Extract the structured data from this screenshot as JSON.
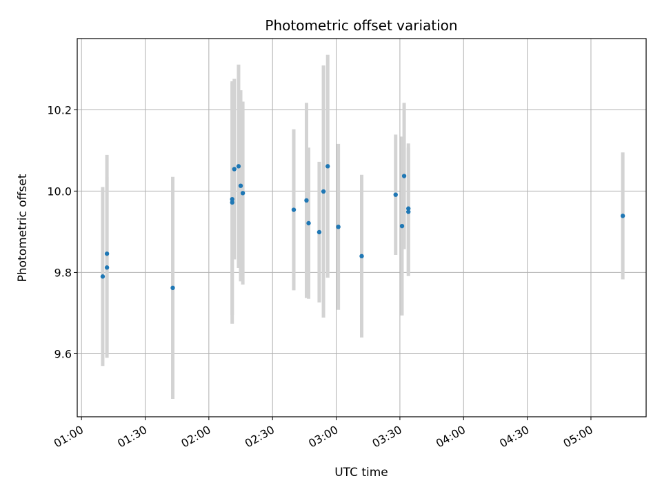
{
  "chart_data": {
    "type": "scatter",
    "title": "Photometric offset variation",
    "xlabel": "UTC time",
    "ylabel": "Photometric offset",
    "x_tick_labels": [
      "01:00",
      "01:30",
      "02:00",
      "02:30",
      "03:00",
      "03:30",
      "04:00",
      "04:30",
      "05:00"
    ],
    "x_tick_values_min": [
      60,
      90,
      120,
      150,
      180,
      210,
      240,
      270,
      300
    ],
    "xlim_min": [
      58,
      326
    ],
    "y_ticks": [
      9.6,
      9.8,
      10.0,
      10.2
    ],
    "y_tick_labels": [
      "9.6",
      "9.8",
      "10.0",
      "10.2"
    ],
    "ylim": [
      9.445,
      10.375
    ],
    "grid": true,
    "point_color": "#1f77b4",
    "errorbar_color": "#d3d3d3",
    "points": [
      {
        "x": "01:10",
        "y": 9.79,
        "err": 0.22
      },
      {
        "x": "01:12",
        "y": 9.812,
        "err": 0.222
      },
      {
        "x": "01:12",
        "y": 9.846,
        "err": 0.243
      },
      {
        "x": "01:43",
        "y": 9.762,
        "err": 0.273
      },
      {
        "x": "02:11",
        "y": 9.972,
        "err": 0.298
      },
      {
        "x": "02:11",
        "y": 9.98,
        "err": 0.285
      },
      {
        "x": "02:12",
        "y": 10.054,
        "err": 0.222
      },
      {
        "x": "02:14",
        "y": 10.061,
        "err": 0.25
      },
      {
        "x": "02:15",
        "y": 10.013,
        "err": 0.235
      },
      {
        "x": "02:16",
        "y": 9.995,
        "err": 0.225
      },
      {
        "x": "02:40",
        "y": 9.954,
        "err": 0.198
      },
      {
        "x": "02:46",
        "y": 9.977,
        "err": 0.24
      },
      {
        "x": "02:47",
        "y": 9.921,
        "err": 0.186
      },
      {
        "x": "02:52",
        "y": 9.899,
        "err": 0.173
      },
      {
        "x": "02:54",
        "y": 9.999,
        "err": 0.31
      },
      {
        "x": "02:56",
        "y": 10.061,
        "err": 0.274
      },
      {
        "x": "03:01",
        "y": 9.912,
        "err": 0.204
      },
      {
        "x": "03:12",
        "y": 9.84,
        "err": 0.2
      },
      {
        "x": "03:28",
        "y": 9.991,
        "err": 0.148
      },
      {
        "x": "03:31",
        "y": 9.914,
        "err": 0.22
      },
      {
        "x": "03:32",
        "y": 10.037,
        "err": 0.18
      },
      {
        "x": "03:34",
        "y": 9.957,
        "err": 0.16
      },
      {
        "x": "03:34",
        "y": 9.949,
        "err": 0.158
      },
      {
        "x": "05:15",
        "y": 9.939,
        "err": 0.156
      }
    ]
  }
}
